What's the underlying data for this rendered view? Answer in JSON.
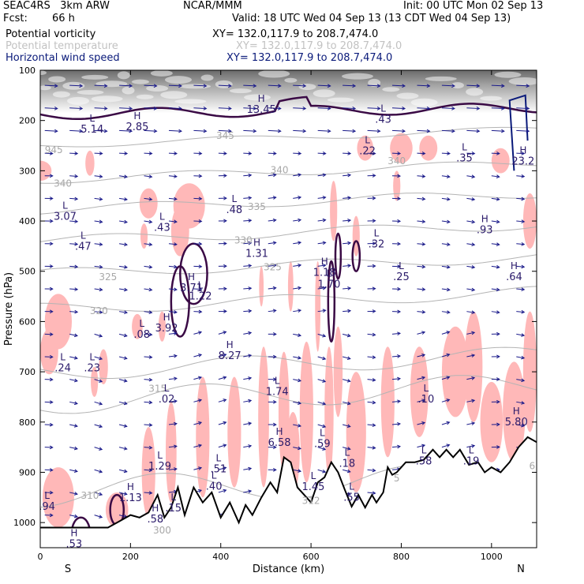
{
  "header": {
    "model": "SEAC4RS   3km ARW",
    "center": "NCAR/MMM",
    "init": "Init: 00 UTC Mon 02 Sep 13",
    "fcst_label": "Fcst:",
    "fcst_value": "66 h",
    "valid": "Valid: 18 UTC Wed 04 Sep 13 (13 CDT Wed 04 Sep 13)",
    "field1_name": "Potential vorticity",
    "field1_xy": "XY= 132.0,117.9 to 208.7,474.0",
    "field2_name": "Potential temperature",
    "field2_xy": "XY= 132.0,117.9 to 208.7,474.0",
    "field3_name": "Horizontal wind speed",
    "field3_xy": "XY= 132.0,117.9 to 208.7,474.0"
  },
  "colors": {
    "pv_contour": "#3a0a45",
    "theta_contour": "#b4b4b4",
    "wind_contour": "#0a1a7a",
    "wind_arrow": "#1a1a8a",
    "label_purple": "#2a1a6a",
    "positive_fill": "#ffb8b8",
    "terrain": "#000000"
  },
  "chart_data": {
    "type": "cross-section",
    "xlabel": "Distance (km)",
    "ylabel": "Pressure (hPa)",
    "x_ticks": [
      "0",
      "200",
      "400",
      "600",
      "800",
      "1000"
    ],
    "y_ticks": [
      "100",
      "200",
      "300",
      "400",
      "500",
      "600",
      "700",
      "800",
      "900",
      "1000"
    ],
    "xlim": [
      0,
      1100
    ],
    "ylim": [
      1050,
      100
    ],
    "x_end_labels": [
      "S",
      "N"
    ],
    "theta_labels": [
      {
        "text": "345",
        "x": 410,
        "p": 237
      },
      {
        "text": "340",
        "x": 50,
        "p": 332
      },
      {
        "text": "340",
        "x": 530,
        "p": 305
      },
      {
        "text": "340",
        "x": 790,
        "p": 287
      },
      {
        "text": "335",
        "x": 480,
        "p": 378
      },
      {
        "text": "330",
        "x": 450,
        "p": 445
      },
      {
        "text": "325",
        "x": 150,
        "p": 518
      },
      {
        "text": "325",
        "x": 515,
        "p": 498
      },
      {
        "text": "320",
        "x": 130,
        "p": 585
      },
      {
        "text": "315",
        "x": 260,
        "p": 740
      },
      {
        "text": "310",
        "x": 110,
        "p": 953
      },
      {
        "text": "312",
        "x": 600,
        "p": 963
      },
      {
        "text": "5",
        "x": 790,
        "p": 918
      },
      {
        "text": "6",
        "x": 1090,
        "p": 894
      },
      {
        "text": "945",
        "x": 30,
        "p": 265
      },
      {
        "text": "300",
        "x": 270,
        "p": 1022
      }
    ],
    "extrema_labels": [
      {
        "letter": "L",
        "value": "5.14",
        "x": 115,
        "p": 215
      },
      {
        "letter": "H",
        "value": "2.85",
        "x": 215,
        "p": 210
      },
      {
        "letter": "H",
        "value": "13.45",
        "x": 490,
        "p": 175
      },
      {
        "letter": "L",
        "value": ".43",
        "x": 760,
        "p": 195
      },
      {
        "letter": "L",
        "value": ".22",
        "x": 725,
        "p": 258
      },
      {
        "letter": "L",
        "value": ".35",
        "x": 940,
        "p": 272
      },
      {
        "letter": "H",
        "value": "23.2",
        "x": 1070,
        "p": 278
      },
      {
        "letter": "L",
        "value": "3.07",
        "x": 55,
        "p": 388
      },
      {
        "letter": "L",
        "value": ".43",
        "x": 270,
        "p": 410
      },
      {
        "letter": "L",
        "value": ".48",
        "x": 430,
        "p": 375
      },
      {
        "letter": "H",
        "value": ".93",
        "x": 985,
        "p": 415
      },
      {
        "letter": "L",
        "value": ".47",
        "x": 95,
        "p": 448
      },
      {
        "letter": "H",
        "value": "1.31",
        "x": 480,
        "p": 462
      },
      {
        "letter": "L",
        "value": ".32",
        "x": 745,
        "p": 443
      },
      {
        "letter": "L",
        "value": ".25",
        "x": 800,
        "p": 508
      },
      {
        "letter": "H",
        "value": ".64",
        "x": 1050,
        "p": 508
      },
      {
        "letter": "H",
        "value": "3.71",
        "x": 335,
        "p": 530
      },
      {
        "letter": "L",
        "value": "1.22",
        "x": 355,
        "p": 547
      },
      {
        "letter": "H",
        "value": "1.18",
        "x": 630,
        "p": 500
      },
      {
        "letter": "L",
        "value": "1.70",
        "x": 640,
        "p": 523
      },
      {
        "letter": "H",
        "value": "3.92",
        "x": 280,
        "p": 610
      },
      {
        "letter": "L",
        "value": ".08",
        "x": 225,
        "p": 623
      },
      {
        "letter": "H",
        "value": "8.27",
        "x": 420,
        "p": 665
      },
      {
        "letter": "L",
        "value": ".24",
        "x": 50,
        "p": 690
      },
      {
        "letter": "L",
        "value": ".23",
        "x": 115,
        "p": 690
      },
      {
        "letter": "L",
        "value": ".02",
        "x": 280,
        "p": 752
      },
      {
        "letter": "L",
        "value": "1.74",
        "x": 525,
        "p": 737
      },
      {
        "letter": "L",
        "value": ".10",
        "x": 855,
        "p": 752
      },
      {
        "letter": "H",
        "value": "5.80",
        "x": 1055,
        "p": 797
      },
      {
        "letter": "H",
        "value": "6.58",
        "x": 530,
        "p": 838
      },
      {
        "letter": "L",
        "value": ".59",
        "x": 625,
        "p": 840
      },
      {
        "letter": "L",
        "value": ".58",
        "x": 850,
        "p": 875
      },
      {
        "letter": "L",
        "value": ".19",
        "x": 955,
        "p": 875
      },
      {
        "letter": "L",
        "value": "1.29",
        "x": 265,
        "p": 885
      },
      {
        "letter": "L",
        "value": ".51",
        "x": 395,
        "p": 891
      },
      {
        "letter": "L",
        "value": ".40",
        "x": 385,
        "p": 925
      },
      {
        "letter": "L",
        "value": ".18",
        "x": 680,
        "p": 880
      },
      {
        "letter": "L",
        "value": "1.45",
        "x": 605,
        "p": 926
      },
      {
        "letter": "H",
        "value": "1.13",
        "x": 200,
        "p": 948
      },
      {
        "letter": "L",
        "value": ".55",
        "x": 690,
        "p": 947
      },
      {
        "letter": "L",
        "value": ".15",
        "x": 295,
        "p": 968
      },
      {
        "letter": "L",
        "value": ".94",
        "x": 15,
        "p": 965
      },
      {
        "letter": "H",
        "value": ".58",
        "x": 255,
        "p": 990
      },
      {
        "letter": "H",
        "value": ".53",
        "x": 75,
        "p": 1040
      }
    ],
    "terrain_profile": [
      [
        0,
        1010
      ],
      [
        100,
        1010
      ],
      [
        150,
        1010
      ],
      [
        170,
        1000
      ],
      [
        200,
        985
      ],
      [
        220,
        990
      ],
      [
        240,
        980
      ],
      [
        260,
        945
      ],
      [
        275,
        990
      ],
      [
        290,
        970
      ],
      [
        305,
        930
      ],
      [
        320,
        985
      ],
      [
        340,
        930
      ],
      [
        360,
        960
      ],
      [
        380,
        940
      ],
      [
        400,
        990
      ],
      [
        420,
        960
      ],
      [
        440,
        1000
      ],
      [
        455,
        965
      ],
      [
        470,
        985
      ],
      [
        490,
        950
      ],
      [
        510,
        920
      ],
      [
        525,
        940
      ],
      [
        540,
        870
      ],
      [
        555,
        880
      ],
      [
        570,
        930
      ],
      [
        585,
        945
      ],
      [
        600,
        960
      ],
      [
        615,
        920
      ],
      [
        630,
        910
      ],
      [
        645,
        880
      ],
      [
        660,
        900
      ],
      [
        675,
        935
      ],
      [
        690,
        968
      ],
      [
        705,
        945
      ],
      [
        720,
        970
      ],
      [
        735,
        945
      ],
      [
        745,
        960
      ],
      [
        760,
        940
      ],
      [
        770,
        890
      ],
      [
        780,
        905
      ],
      [
        790,
        900
      ],
      [
        810,
        880
      ],
      [
        830,
        880
      ],
      [
        850,
        875
      ],
      [
        870,
        855
      ],
      [
        885,
        870
      ],
      [
        900,
        855
      ],
      [
        915,
        870
      ],
      [
        930,
        855
      ],
      [
        950,
        885
      ],
      [
        970,
        880
      ],
      [
        985,
        900
      ],
      [
        1000,
        890
      ],
      [
        1020,
        900
      ],
      [
        1040,
        880
      ],
      [
        1060,
        850
      ],
      [
        1080,
        830
      ],
      [
        1100,
        840
      ]
    ]
  }
}
